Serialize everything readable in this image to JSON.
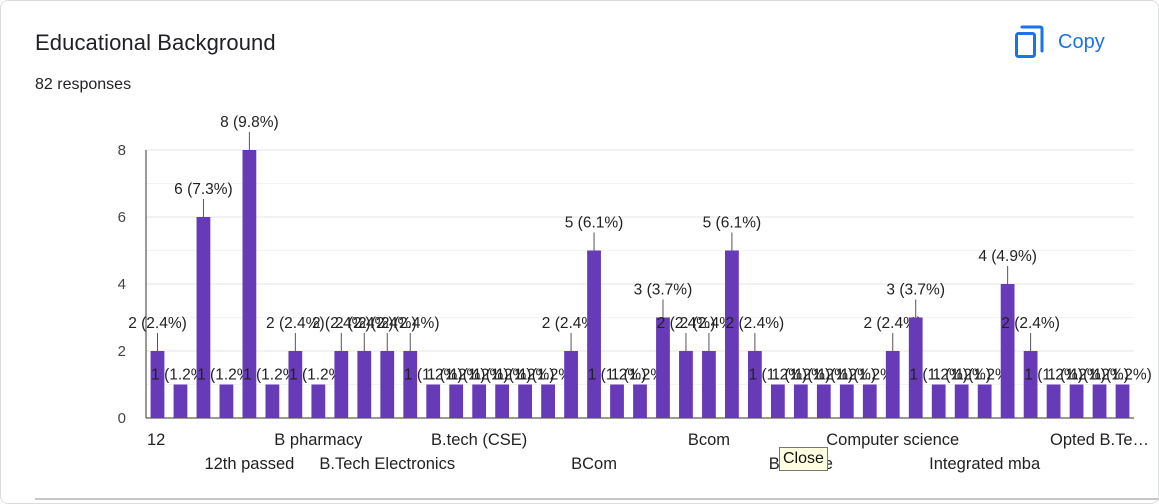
{
  "header": {
    "title": "Educational Background",
    "responses": "82 responses",
    "copy_label": "Copy"
  },
  "tooltip": {
    "text": "Close"
  },
  "colors": {
    "bar": "#673ab7",
    "accent": "#1a73e8"
  },
  "icons": {
    "copy": "copy-icon"
  },
  "chart_data": {
    "type": "bar",
    "title": "Educational Background",
    "xlabel": "",
    "ylabel": "",
    "ylim": [
      0,
      8
    ],
    "yticks": [
      0,
      2,
      4,
      6,
      8
    ],
    "grid": true,
    "values": [
      2,
      1,
      6,
      1,
      8,
      1,
      2,
      1,
      2,
      2,
      2,
      2,
      1,
      1,
      1,
      1,
      1,
      1,
      2,
      5,
      1,
      1,
      3,
      2,
      2,
      5,
      2,
      1,
      1,
      1,
      1,
      1,
      2,
      3,
      1,
      1,
      1,
      4,
      2,
      1,
      1,
      1,
      1
    ],
    "data_labels": [
      "2 (2.4%)",
      "1 (1.2%)",
      "6 (7.3%)",
      "1 (1.2%)",
      "8 (9.8%)",
      "1 (1.2%)",
      "2 (2.4%)",
      "1 (1.2%)",
      "2 (2.4%)",
      "2 (2.4%)",
      "2 (2.4%)",
      "2 (2.4%)",
      "1 (1.2%)",
      "1 (1.2%)",
      "1 (1.2%)",
      "1 (1.2%)",
      "1 (1.2%)",
      "1 (1.2%)",
      "2 (2.4%)",
      "5 (6.1%)",
      "1 (1.2%)",
      "1 (1.2%)",
      "3 (3.7%)",
      "2 (2.4%)",
      "2 (2.4%)",
      "5 (6.1%)",
      "2 (2.4%)",
      "1 (1.2%)",
      "1 (1.2%)",
      "1 (1.2%)",
      "1 (1.2%)",
      "1 (1.2%)",
      "2 (2.4%)",
      "3 (3.7%)",
      "1 (1.2%)",
      "1 (1.2%)",
      "1 (1.2%)",
      "4 (4.9%)",
      "2 (2.4%)",
      "1 (1.2%)",
      "1 (1.2%)",
      "1 (1.2%)",
      "1 (1.2%)"
    ],
    "axis_labels": [
      {
        "index": 0,
        "row": 0,
        "text": "12"
      },
      {
        "index": 4,
        "row": 1,
        "text": "12th passed"
      },
      {
        "index": 7,
        "row": 0,
        "text": "B pharmacy"
      },
      {
        "index": 10,
        "row": 1,
        "text": "B.Tech Electronics"
      },
      {
        "index": 14,
        "row": 0,
        "text": "B.tech (CSE)"
      },
      {
        "index": 19,
        "row": 1,
        "text": "BCom"
      },
      {
        "index": 24,
        "row": 0,
        "text": "Bcom"
      },
      {
        "index": 28,
        "row": 1,
        "text": "Btech ce"
      },
      {
        "index": 32,
        "row": 0,
        "text": "Computer science"
      },
      {
        "index": 36,
        "row": 1,
        "text": "Integrated mba"
      },
      {
        "index": 41,
        "row": 0,
        "text": "Opted B.Te…"
      }
    ]
  }
}
